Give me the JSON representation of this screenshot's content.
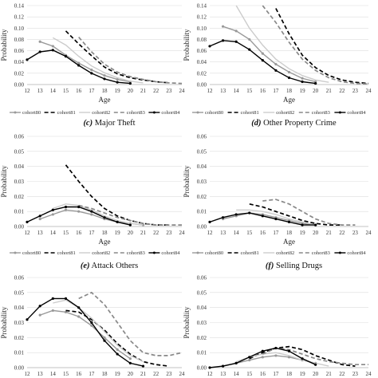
{
  "chart_data": [
    {
      "panel": "top-left",
      "type": "line",
      "caption_letter": "",
      "caption_text": "",
      "xlabel": "Age",
      "ylabel": "Probability",
      "x": [
        12,
        13,
        14,
        15,
        16,
        17,
        18,
        19,
        20,
        21,
        22,
        23,
        24
      ],
      "ylim": [
        0,
        0.14
      ],
      "yticks": [
        "0.00",
        "0.02",
        "0.04",
        "0.06",
        "0.08",
        "0.10",
        "0.12",
        "0.14"
      ],
      "grid": "horizontal",
      "legend_position": "bottom",
      "series": [
        {
          "name": "cohort80",
          "values": [
            null,
            0.076,
            0.068,
            0.052,
            0.038,
            0.026,
            0.016,
            0.009,
            0.005,
            null,
            null,
            null,
            null
          ]
        },
        {
          "name": "cohort81",
          "values": [
            null,
            null,
            null,
            0.095,
            0.072,
            0.051,
            0.031,
            0.019,
            0.012,
            0.008,
            0.005,
            0.003,
            null
          ]
        },
        {
          "name": "cohort82",
          "values": [
            null,
            null,
            0.083,
            0.07,
            0.05,
            0.033,
            0.021,
            0.012,
            0.006,
            0.003,
            null,
            null,
            null
          ]
        },
        {
          "name": "cohort83",
          "values": [
            null,
            null,
            null,
            null,
            0.084,
            0.058,
            0.036,
            0.022,
            0.014,
            0.009,
            0.005,
            0.003,
            0.002
          ]
        },
        {
          "name": "cohort84",
          "values": [
            0.044,
            0.058,
            0.061,
            0.05,
            0.034,
            0.02,
            0.01,
            0.004,
            0.002,
            null,
            null,
            null,
            null
          ]
        }
      ]
    },
    {
      "panel": "top-right",
      "type": "line",
      "caption_letter": "",
      "caption_text": "",
      "xlabel": "Age",
      "ylabel": "Probability",
      "x": [
        12,
        13,
        14,
        15,
        16,
        17,
        18,
        19,
        20,
        21,
        22,
        23,
        24
      ],
      "ylim": [
        0,
        0.14
      ],
      "yticks": [
        "0.00",
        "0.02",
        "0.04",
        "0.06",
        "0.08",
        "0.10",
        "0.12",
        "0.14"
      ],
      "grid": "horizontal",
      "legend_position": "bottom",
      "series": [
        {
          "name": "cohort80",
          "values": [
            null,
            0.103,
            0.095,
            0.08,
            0.055,
            0.036,
            0.022,
            0.011,
            0.005,
            null,
            null,
            null,
            null
          ]
        },
        {
          "name": "cohort81",
          "values": [
            null,
            null,
            null,
            null,
            null,
            0.135,
            0.09,
            0.052,
            0.03,
            0.016,
            0.008,
            0.004,
            0.002
          ]
        },
        {
          "name": "cohort82",
          "values": [
            null,
            null,
            0.14,
            0.1,
            0.07,
            0.045,
            0.028,
            0.016,
            0.008,
            0.004,
            null,
            null,
            null
          ]
        },
        {
          "name": "cohort83",
          "values": [
            null,
            null,
            null,
            null,
            0.14,
            0.11,
            0.075,
            0.045,
            0.025,
            0.012,
            0.005,
            0.002,
            0.001
          ]
        },
        {
          "name": "cohort84",
          "values": [
            0.068,
            0.078,
            0.076,
            0.062,
            0.043,
            0.025,
            0.012,
            0.005,
            0.002,
            null,
            null,
            null,
            null
          ]
        }
      ]
    },
    {
      "panel": "middle-left",
      "type": "line",
      "caption_letter": "(c)",
      "caption_text": "Major Theft",
      "xlabel": "Age",
      "ylabel": "Probability",
      "x": [
        12,
        13,
        14,
        15,
        16,
        17,
        18,
        19,
        20,
        21,
        22,
        23,
        24
      ],
      "ylim": [
        0,
        0.06
      ],
      "yticks": [
        "0.00",
        "0.01",
        "0.02",
        "0.03",
        "0.04",
        "0.05",
        "0.06"
      ],
      "grid": "horizontal",
      "legend_position": "bottom",
      "series": [
        {
          "name": "cohort80",
          "values": [
            null,
            0.005,
            0.008,
            0.011,
            0.01,
            0.008,
            0.005,
            0.003,
            0.002,
            0.001,
            null,
            null,
            null
          ]
        },
        {
          "name": "cohort81",
          "values": [
            null,
            null,
            null,
            0.041,
            0.03,
            0.02,
            0.012,
            0.007,
            0.004,
            0.002,
            0.001,
            0.001,
            null
          ]
        },
        {
          "name": "cohort82",
          "values": [
            null,
            null,
            0.012,
            0.015,
            0.014,
            0.011,
            0.007,
            0.004,
            0.002,
            0.001,
            null,
            null,
            null
          ]
        },
        {
          "name": "cohort83",
          "values": [
            null,
            null,
            null,
            null,
            0.014,
            0.012,
            0.009,
            0.006,
            0.004,
            0.002,
            0.001,
            0.001,
            0.001
          ]
        },
        {
          "name": "cohort84",
          "values": [
            0.003,
            0.007,
            0.011,
            0.013,
            0.013,
            0.01,
            0.006,
            0.003,
            0.001,
            null,
            null,
            null,
            null
          ]
        }
      ]
    },
    {
      "panel": "middle-right",
      "type": "line",
      "caption_letter": "(d)",
      "caption_text": "Other Property Crime",
      "xlabel": "Age",
      "ylabel": "Probability",
      "x": [
        12,
        13,
        14,
        15,
        16,
        17,
        18,
        19,
        20,
        21,
        22,
        23,
        24
      ],
      "ylim": [
        0,
        0.06
      ],
      "yticks": [
        "0.00",
        "0.01",
        "0.02",
        "0.03",
        "0.04",
        "0.05",
        "0.06"
      ],
      "grid": "horizontal",
      "legend_position": "bottom",
      "series": [
        {
          "name": "cohort80",
          "values": [
            null,
            0.005,
            0.007,
            0.009,
            0.008,
            0.006,
            0.004,
            0.002,
            0.001,
            null,
            null,
            null,
            null
          ]
        },
        {
          "name": "cohort81",
          "values": [
            null,
            null,
            null,
            0.015,
            0.013,
            0.01,
            0.007,
            0.004,
            0.002,
            0.001,
            0.001,
            null,
            null
          ]
        },
        {
          "name": "cohort82",
          "values": [
            null,
            null,
            0.011,
            0.011,
            0.01,
            0.008,
            0.005,
            0.003,
            0.001,
            null,
            null,
            null,
            null
          ]
        },
        {
          "name": "cohort83",
          "values": [
            null,
            null,
            null,
            null,
            0.017,
            0.018,
            0.015,
            0.01,
            0.005,
            0.002,
            0.001,
            0.001,
            null
          ]
        },
        {
          "name": "cohort84",
          "values": [
            0.003,
            0.006,
            0.008,
            0.009,
            0.007,
            0.005,
            0.003,
            0.001,
            0.001,
            null,
            null,
            null,
            null
          ]
        }
      ]
    },
    {
      "panel": "bottom-left",
      "type": "line",
      "caption_letter": "(e)",
      "caption_text": "Attack Others",
      "xlabel": "",
      "ylabel": "Probability",
      "x": [
        12,
        13,
        14,
        15,
        16,
        17,
        18,
        19,
        20,
        21,
        22,
        23,
        24
      ],
      "ylim": [
        0,
        0.06
      ],
      "yticks": [
        "0.00",
        "0.01",
        "0.02",
        "0.03",
        "0.04",
        "0.05",
        "0.06"
      ],
      "grid": "horizontal",
      "legend_position": "bottom",
      "series": [
        {
          "name": "cohort80",
          "values": [
            null,
            0.035,
            0.038,
            0.037,
            0.034,
            0.028,
            0.02,
            0.012,
            0.006,
            null,
            null,
            null,
            null
          ]
        },
        {
          "name": "cohort81",
          "values": [
            null,
            null,
            null,
            0.038,
            0.037,
            0.032,
            0.025,
            0.016,
            0.009,
            0.004,
            0.002,
            0.001,
            null
          ]
        },
        {
          "name": "cohort82",
          "values": [
            null,
            null,
            0.043,
            0.045,
            0.04,
            0.033,
            0.024,
            0.015,
            0.008,
            0.004,
            null,
            null,
            null
          ]
        },
        {
          "name": "cohort83",
          "values": [
            null,
            null,
            null,
            null,
            0.046,
            0.05,
            0.042,
            0.03,
            0.018,
            0.01,
            0.008,
            0.008,
            0.01
          ]
        },
        {
          "name": "cohort84",
          "values": [
            0.032,
            0.041,
            0.046,
            0.046,
            0.04,
            0.03,
            0.018,
            0.009,
            0.003,
            0.001,
            null,
            null,
            null
          ]
        }
      ]
    },
    {
      "panel": "bottom-right",
      "type": "line",
      "caption_letter": "(f)",
      "caption_text": "Selling Drugs",
      "xlabel": "",
      "ylabel": "Probability",
      "x": [
        12,
        13,
        14,
        15,
        16,
        17,
        18,
        19,
        20,
        21,
        22,
        23,
        24
      ],
      "ylim": [
        0,
        0.06
      ],
      "yticks": [
        "0.00",
        "0.01",
        "0.02",
        "0.03",
        "0.04",
        "0.05",
        "0.06"
      ],
      "grid": "horizontal",
      "legend_position": "bottom",
      "series": [
        {
          "name": "cohort80",
          "values": [
            null,
            0.001,
            0.003,
            0.005,
            0.007,
            0.008,
            0.007,
            0.005,
            0.003,
            null,
            null,
            null,
            null
          ]
        },
        {
          "name": "cohort81",
          "values": [
            null,
            null,
            null,
            0.006,
            0.01,
            0.013,
            0.014,
            0.012,
            0.008,
            0.005,
            0.002,
            0.001,
            null
          ]
        },
        {
          "name": "cohort82",
          "values": [
            null,
            null,
            0.004,
            0.007,
            0.009,
            0.01,
            0.008,
            0.005,
            0.003,
            0.001,
            null,
            null,
            null
          ]
        },
        {
          "name": "cohort83",
          "values": [
            null,
            null,
            null,
            null,
            0.009,
            0.013,
            0.012,
            0.009,
            0.006,
            0.004,
            0.003,
            0.002,
            0.002
          ]
        },
        {
          "name": "cohort84",
          "values": [
            0.0,
            0.001,
            0.003,
            0.007,
            0.011,
            0.013,
            0.011,
            0.006,
            0.002,
            null,
            null,
            null,
            null
          ]
        }
      ]
    }
  ],
  "legend": [
    "cohort80",
    "cohort81",
    "cohort82",
    "cohort83",
    "cohort84"
  ],
  "series_style": {
    "cohort80": {
      "color": "#999999",
      "dash": "solid",
      "marker": "circle"
    },
    "cohort81": {
      "color": "#000000",
      "dash": "dashed",
      "marker": "none"
    },
    "cohort82": {
      "color": "#cccccc",
      "dash": "solid",
      "marker": "none"
    },
    "cohort83": {
      "color": "#888888",
      "dash": "dashed",
      "marker": "none"
    },
    "cohort84": {
      "color": "#000000",
      "dash": "solid",
      "marker": "circle"
    }
  },
  "colors": {
    "grid": "#dddddd",
    "axis": "#888888"
  }
}
